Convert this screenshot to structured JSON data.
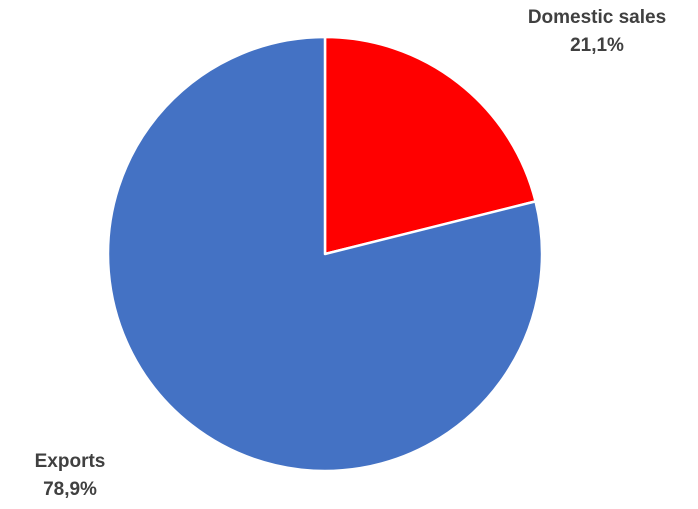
{
  "chart_data": {
    "type": "pie",
    "title": "",
    "slices": [
      {
        "label": "Domestic sales",
        "value": 21.1,
        "value_label": "21,1%",
        "color": "#ff0000"
      },
      {
        "label": "Exports",
        "value": 78.9,
        "value_label": "78,9%",
        "color": "#4472c4"
      }
    ],
    "start_angle_deg": 0,
    "direction": "clockwise",
    "slice_border_color": "#ffffff",
    "legend": "none"
  }
}
